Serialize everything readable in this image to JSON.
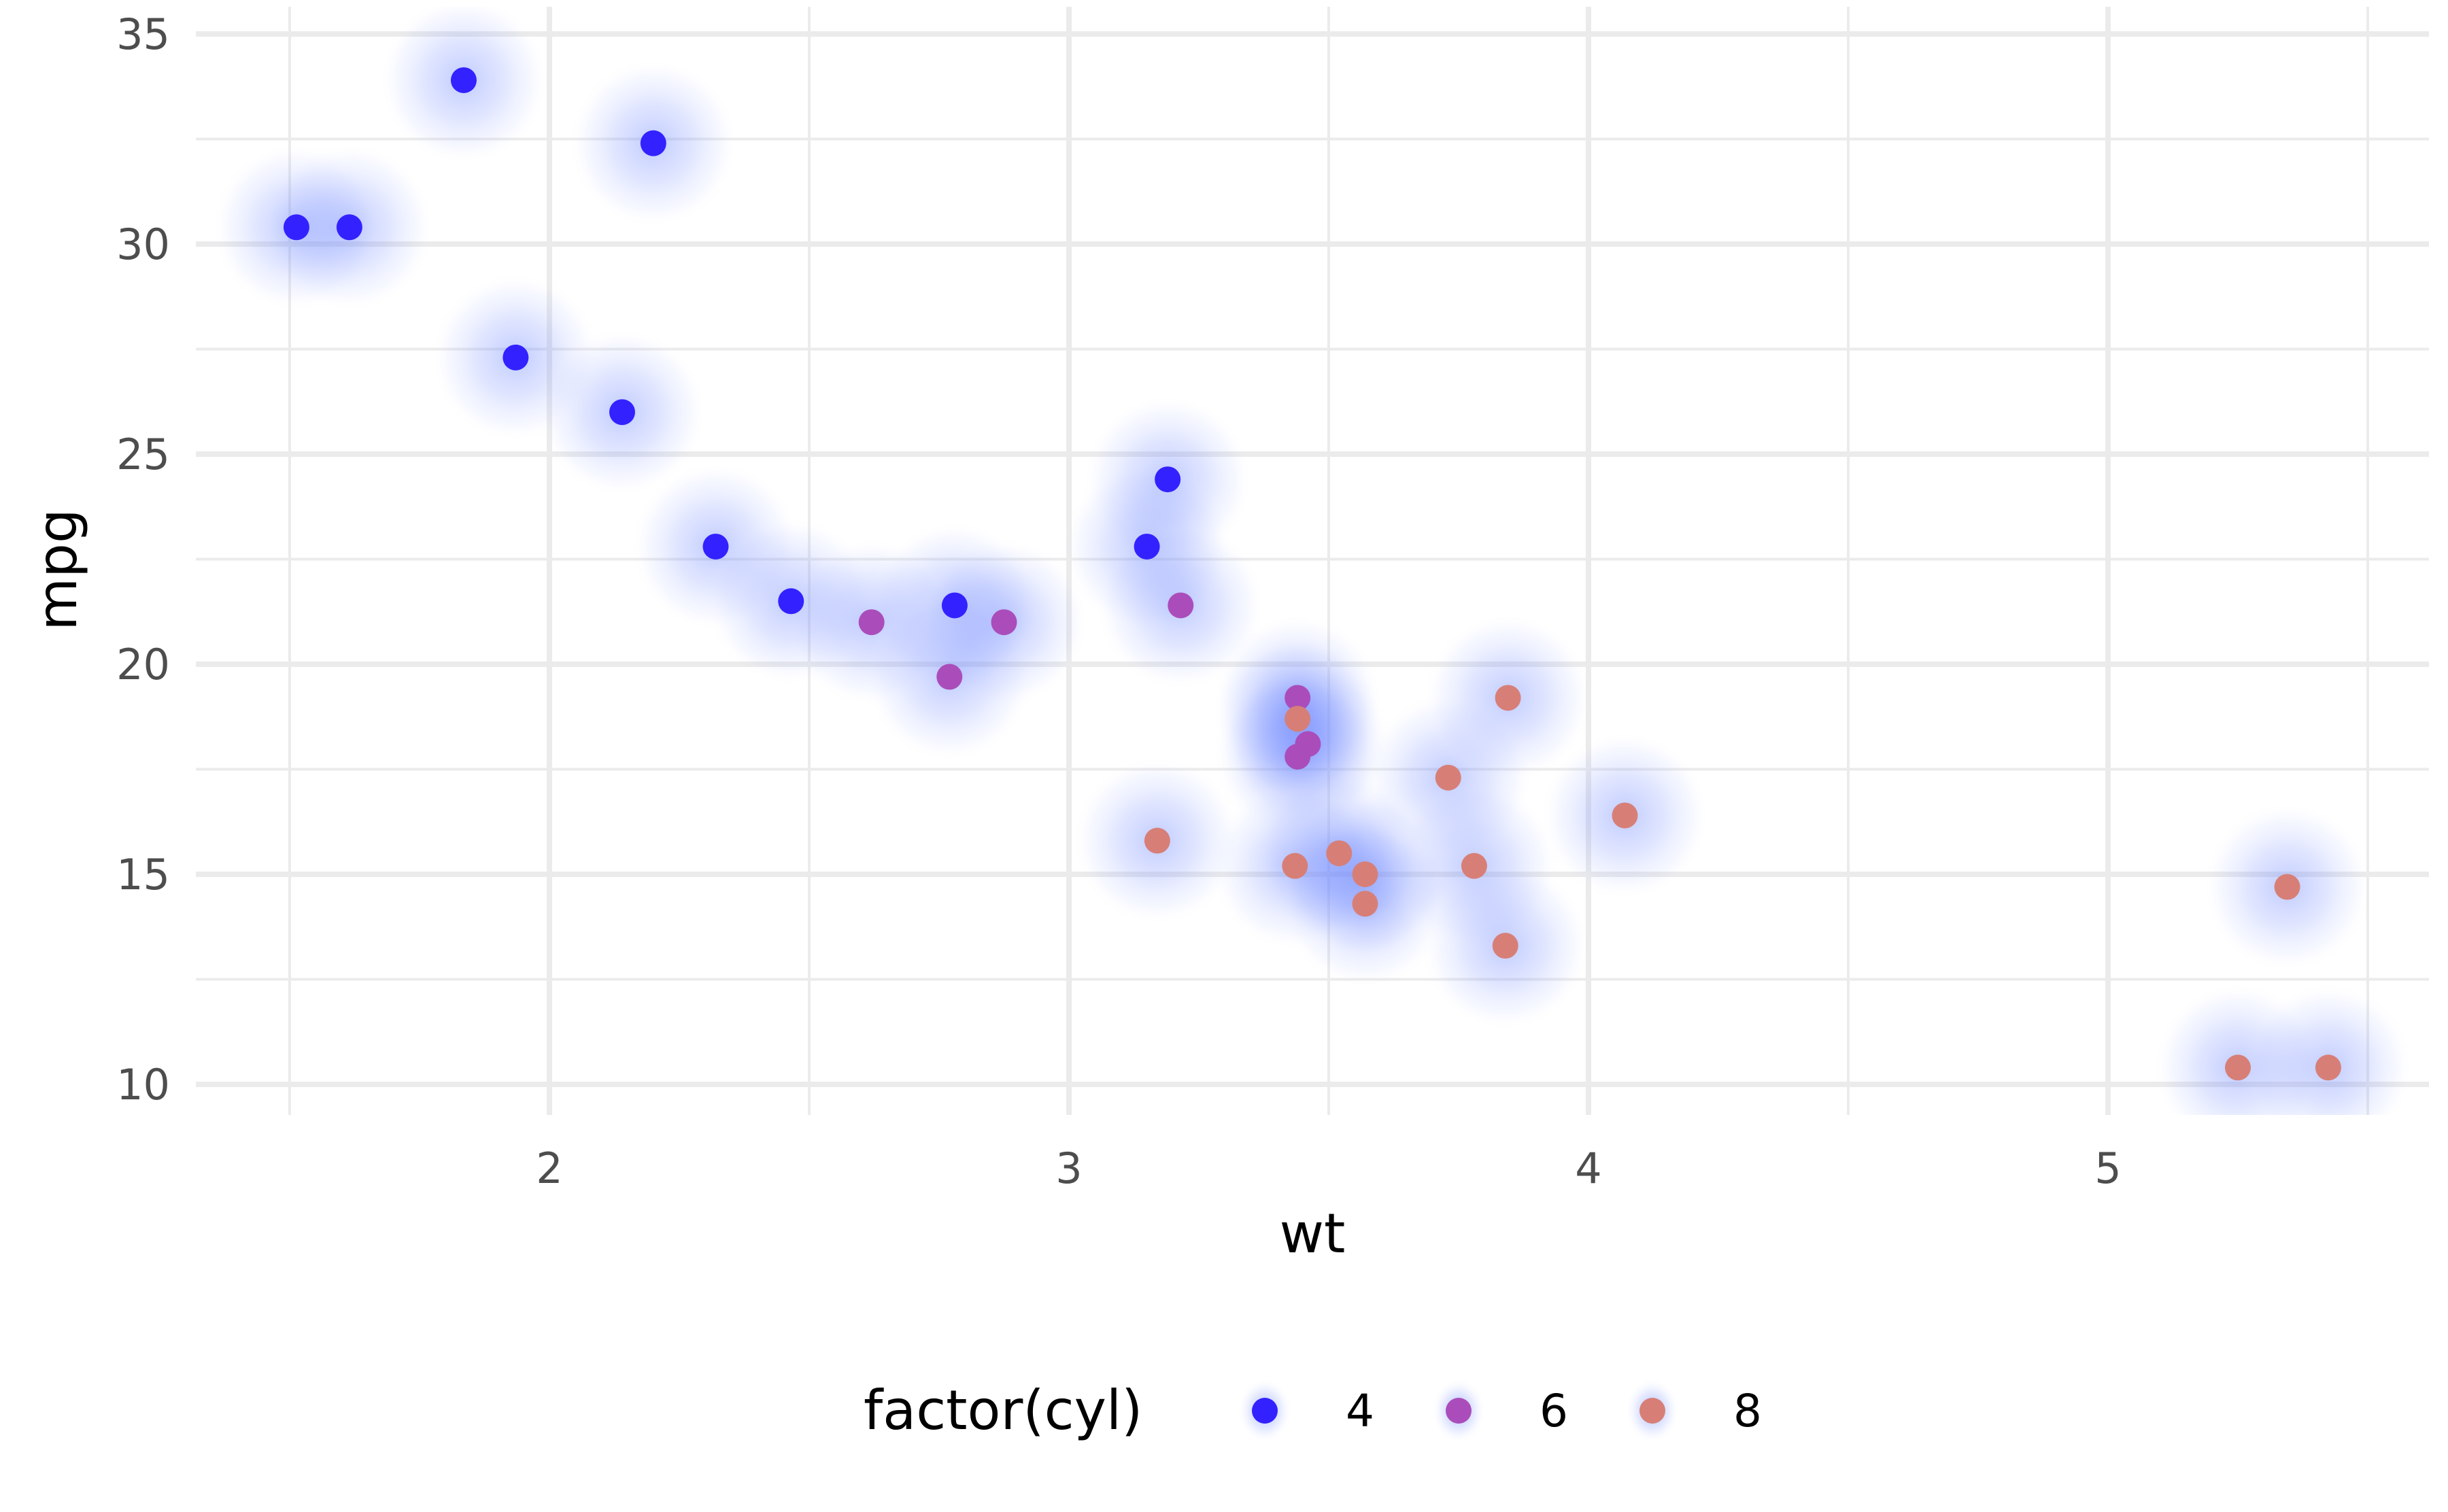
{
  "chart_data": {
    "type": "scatter",
    "title": "",
    "xlabel": "wt",
    "ylabel": "mpg",
    "xlim": [
      1.33,
      5.62
    ],
    "ylim": [
      9.2,
      35.0
    ],
    "x_ticks": [
      2,
      3,
      4,
      5
    ],
    "x_tick_labels": [
      "2",
      "3",
      "4",
      "5"
    ],
    "y_ticks": [
      10,
      15,
      20,
      25,
      30,
      35
    ],
    "y_tick_labels": [
      "10",
      "15",
      "20",
      "25",
      "30",
      "35"
    ],
    "x_minor": [
      1.5,
      2.5,
      3.5,
      4.5,
      5.5
    ],
    "y_minor": [
      12.5,
      17.5,
      22.5,
      27.5,
      32.5
    ],
    "grid": true,
    "legend": {
      "title": "factor(cyl)",
      "placement": "bottom",
      "entries": [
        {
          "label": "4",
          "color": "#3322ff"
        },
        {
          "label": "6",
          "color": "#aa4dbb"
        },
        {
          "label": "8",
          "color": "#d77f77"
        }
      ]
    },
    "glow_color": "#5a78ff",
    "series": [
      {
        "name": "4",
        "color": "#3322ff",
        "points": [
          [
            2.32,
            22.8
          ],
          [
            3.19,
            24.4
          ],
          [
            3.15,
            22.8
          ],
          [
            2.2,
            32.4
          ],
          [
            1.615,
            30.4
          ],
          [
            1.835,
            33.9
          ],
          [
            2.465,
            21.5
          ],
          [
            1.935,
            27.3
          ],
          [
            2.14,
            26.0
          ],
          [
            1.513,
            30.4
          ],
          [
            2.78,
            21.4
          ]
        ]
      },
      {
        "name": "6",
        "color": "#aa4dbb",
        "points": [
          [
            2.62,
            21.0
          ],
          [
            2.875,
            21.0
          ],
          [
            3.215,
            21.4
          ],
          [
            3.46,
            18.1
          ],
          [
            3.44,
            19.2
          ],
          [
            3.44,
            17.8
          ],
          [
            2.77,
            19.7
          ]
        ]
      },
      {
        "name": "8",
        "color": "#d77f77",
        "points": [
          [
            3.44,
            18.7
          ],
          [
            3.57,
            14.3
          ],
          [
            4.07,
            16.4
          ],
          [
            3.73,
            17.3
          ],
          [
            3.78,
            15.2
          ],
          [
            5.25,
            10.4
          ],
          [
            5.424,
            10.4
          ],
          [
            5.345,
            14.7
          ],
          [
            3.52,
            15.5
          ],
          [
            3.435,
            15.2
          ],
          [
            3.84,
            13.3
          ],
          [
            3.845,
            19.2
          ],
          [
            3.17,
            15.8
          ],
          [
            3.57,
            15.0
          ]
        ]
      }
    ]
  }
}
